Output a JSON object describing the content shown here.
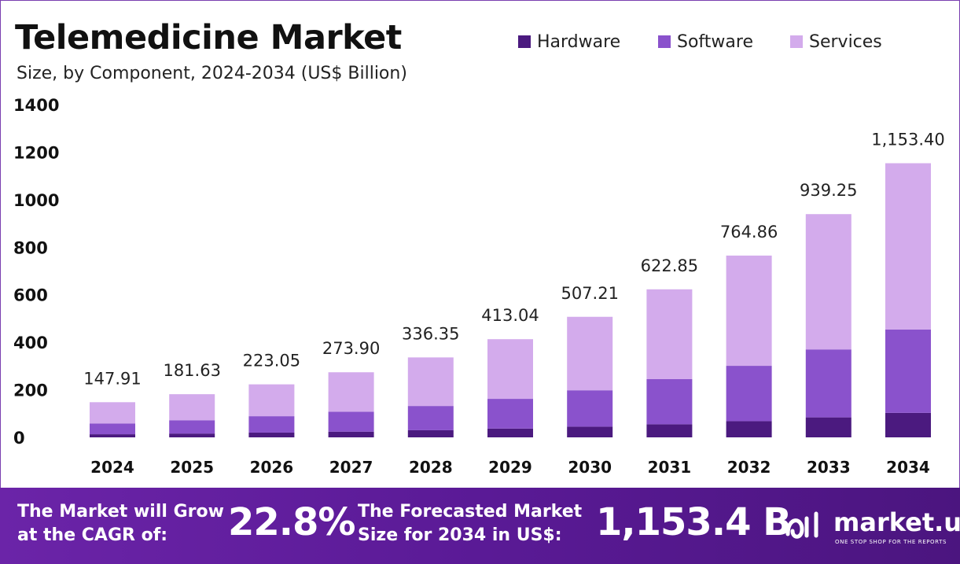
{
  "chart_data": {
    "type": "bar",
    "stacked": true,
    "title": "Telemedicine Market",
    "subtitle": "Size, by Component, 2024-2034 (US$ Billion)",
    "categories": [
      "2024",
      "2025",
      "2026",
      "2027",
      "2028",
      "2029",
      "2030",
      "2031",
      "2032",
      "2033",
      "2034"
    ],
    "totals": [
      147.91,
      181.63,
      223.05,
      273.9,
      336.35,
      413.04,
      507.21,
      622.85,
      764.86,
      939.25,
      1153.4
    ],
    "total_labels": [
      "147.91",
      "181.63",
      "223.05",
      "273.90",
      "336.35",
      "413.04",
      "507.21",
      "622.85",
      "764.86",
      "939.25",
      "1,153.40"
    ],
    "series": [
      {
        "name": "Hardware",
        "color": "#4b1a7f",
        "values": [
          13,
          16,
          20,
          24,
          30,
          37,
          45,
          55,
          68,
          84,
          103
        ]
      },
      {
        "name": "Software",
        "color": "#8a52cc",
        "values": [
          45,
          56,
          69,
          84,
          102,
          125,
          153,
          190,
          233,
          286,
          351
        ]
      },
      {
        "name": "Services",
        "color": "#d3abec",
        "values": [
          89.91,
          109.63,
          134.05,
          165.9,
          204.35,
          251.04,
          309.21,
          377.85,
          463.86,
          569.25,
          699.4
        ]
      }
    ],
    "y_ticks": [
      "0",
      "200",
      "400",
      "600",
      "800",
      "1000",
      "1200",
      "1400"
    ],
    "ylim": [
      0,
      1400
    ],
    "xlabel": "",
    "ylabel": "",
    "grid": false,
    "legend_position": "top-right"
  },
  "footer": {
    "cagr_line1": "The Market will Grow",
    "cagr_line2": "at the CAGR of:",
    "cagr_value": "22.8%",
    "forecast_line1": "The Forecasted Market",
    "forecast_line2": "Size for 2034 in US$:",
    "forecast_value": "1,153.4 B",
    "brand_name": "market.us",
    "brand_tagline": "ONE STOP SHOP FOR THE REPORTS",
    "background_color": "#5a1a96"
  }
}
